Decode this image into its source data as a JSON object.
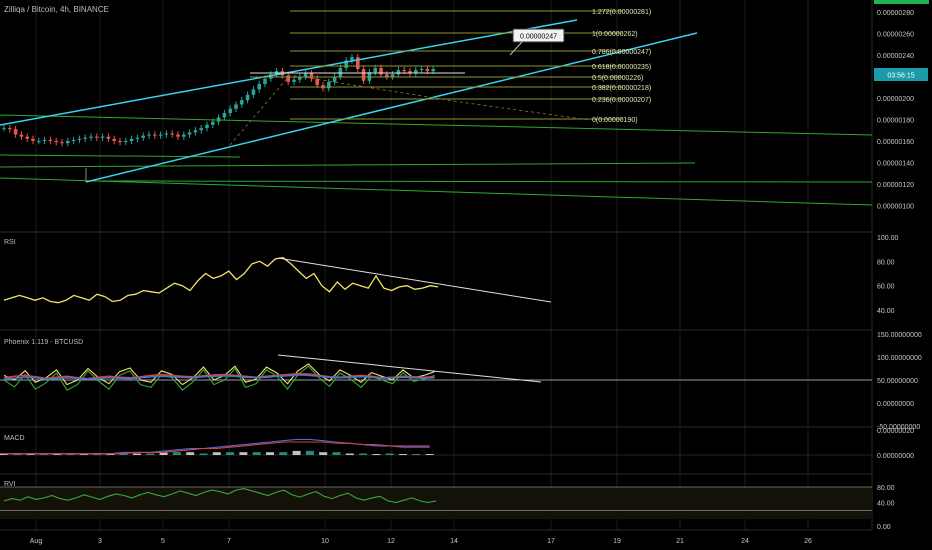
{
  "header": {
    "symbol_title": "Zilliqa / Bitcoin, 4h, BINANCE"
  },
  "colors": {
    "background": "#000000",
    "grid": "#1c1c1c",
    "axis_text": "#c8c8c8",
    "candle_up": "#26a69a",
    "candle_down": "#ef5350",
    "channel": "#36d4f0",
    "fib": "#8a9a2a",
    "fib_text": "#e6e6b4",
    "green_line": "#2ea82e",
    "rsi": "#f2e36b",
    "phoenix_yellow": "#f2e36b",
    "phoenix_green": "#3aa83a",
    "phoenix_red": "#d94040",
    "phoenix_blue": "#3a7ad9",
    "macd_blue": "#4a6ad9",
    "macd_red": "#d94040",
    "rvi": "#3aa83a"
  },
  "price_axis": {
    "ticks": [
      "0.00000280",
      "0.00000260",
      "0.00000240",
      "0.00000220",
      "0.00000200",
      "0.00000180",
      "0.00000160",
      "0.00000140",
      "0.00000120",
      "0.00000100"
    ],
    "countdown": "03:56:15"
  },
  "time_axis": {
    "labels": [
      "Aug",
      "3",
      "5",
      "7",
      "10",
      "12",
      "14",
      "17",
      "19",
      "21",
      "24",
      "26"
    ]
  },
  "fib_levels": [
    {
      "ratio": "1.272",
      "price": "0.00000281"
    },
    {
      "ratio": "1",
      "price": "0.00000262"
    },
    {
      "ratio": "0.786",
      "price": "0.00000247"
    },
    {
      "ratio": "0.618",
      "price": "0.00000235"
    },
    {
      "ratio": "0.5",
      "price": "0.00000226"
    },
    {
      "ratio": "0.382",
      "price": "0.00000218"
    },
    {
      "ratio": "0.236",
      "price": "0.00000207"
    },
    {
      "ratio": "0",
      "price": "0.00000190"
    }
  ],
  "fib_label_format": "({price})",
  "callout": {
    "value": "0.00000247"
  },
  "panels": {
    "rsi": {
      "label": "RSI",
      "ticks": [
        "100.00",
        "80.00",
        "60.00",
        "40.00"
      ]
    },
    "phoenix": {
      "label": "Phoenix 1.119 - BTCUSD",
      "ticks": [
        "150.00000000",
        "100.00000000",
        "50.00000000",
        "0.00000000",
        "-50.00000000"
      ]
    },
    "macd": {
      "label": "MACD",
      "ticks": [
        "0.00000020",
        "0.00000000"
      ]
    },
    "rvi": {
      "label": "RVI",
      "ticks": [
        "80.00",
        "40.00",
        "0.00"
      ]
    }
  },
  "chart_data": {
    "type": "line",
    "title": "Zilliqa / Bitcoin, 4h, BINANCE",
    "note_units": "price in BTC; x = candle index (4h bars)",
    "price_series": [
      1.72,
      1.71,
      1.66,
      1.64,
      1.62,
      1.6,
      1.6,
      1.61,
      1.6,
      1.59,
      1.58,
      1.6,
      1.61,
      1.62,
      1.63,
      1.64,
      1.63,
      1.64,
      1.62,
      1.6,
      1.59,
      1.6,
      1.62,
      1.63,
      1.65,
      1.66,
      1.65,
      1.66,
      1.67,
      1.66,
      1.64,
      1.66,
      1.68,
      1.7,
      1.72,
      1.75,
      1.78,
      1.82,
      1.86,
      1.9,
      1.94,
      1.98,
      2.03,
      2.08,
      2.13,
      2.18,
      2.22,
      2.25,
      2.21,
      2.15,
      2.17,
      2.2,
      2.23,
      2.18,
      2.12,
      2.09,
      2.15,
      2.2,
      2.28,
      2.35,
      2.38,
      2.27,
      2.16,
      2.24,
      2.28,
      2.22,
      2.2,
      2.22,
      2.26,
      2.25,
      2.23,
      2.26,
      2.27,
      2.25,
      2.27
    ],
    "rsi_series": [
      48,
      50,
      52,
      50,
      48,
      50,
      47,
      46,
      48,
      52,
      50,
      48,
      53,
      51,
      47,
      48,
      52,
      53,
      56,
      55,
      54,
      58,
      62,
      60,
      56,
      64,
      70,
      66,
      68,
      72,
      65,
      70,
      78,
      80,
      76,
      82,
      83,
      78,
      72,
      66,
      70,
      60,
      55,
      63,
      57,
      62,
      60,
      58,
      68,
      58,
      56,
      59,
      60,
      57,
      58,
      60,
      59
    ],
    "phoenix_yellow": [
      60,
      50,
      70,
      45,
      55,
      72,
      40,
      50,
      75,
      55,
      42,
      68,
      76,
      50,
      45,
      70,
      62,
      40,
      55,
      78,
      50,
      60,
      80,
      45,
      52,
      78,
      65,
      42,
      70,
      85,
      62,
      48,
      72,
      60,
      45,
      66,
      58,
      50,
      72,
      55,
      60,
      68
    ],
    "phoenix_green": [
      50,
      35,
      62,
      30,
      44,
      65,
      28,
      40,
      70,
      48,
      30,
      60,
      70,
      40,
      34,
      62,
      55,
      28,
      46,
      72,
      40,
      50,
      75,
      34,
      42,
      72,
      58,
      30,
      62,
      80,
      55,
      36,
      65,
      52,
      34,
      58,
      50,
      42,
      66,
      47,
      52,
      60
    ],
    "phoenix_red": [
      55,
      58,
      60,
      57,
      54,
      56,
      58,
      55,
      53,
      56,
      58,
      56,
      55,
      57,
      60,
      62,
      60,
      58,
      57,
      59,
      61,
      62,
      60,
      58,
      56,
      58,
      60,
      62,
      64,
      63,
      60,
      57,
      56,
      58,
      60,
      58,
      55,
      56,
      58,
      57,
      56,
      57
    ],
    "phoenix_blue": [
      52,
      54,
      56,
      55,
      52,
      53,
      55,
      54,
      52,
      53,
      55,
      54,
      53,
      55,
      57,
      58,
      57,
      56,
      55,
      57,
      58,
      59,
      58,
      56,
      55,
      56,
      58,
      59,
      61,
      60,
      58,
      56,
      55,
      56,
      57,
      56,
      54,
      55,
      56,
      55,
      54,
      55
    ],
    "macd_line": [
      0.01,
      0.01,
      0.01,
      0.01,
      0.01,
      0.01,
      0.01,
      0.01,
      0.01,
      0.02,
      0.02,
      0.02,
      0.03,
      0.04,
      0.05,
      0.05,
      0.06,
      0.07,
      0.08,
      0.09,
      0.1,
      0.11,
      0.12,
      0.12,
      0.11,
      0.1,
      0.09,
      0.08,
      0.07,
      0.07,
      0.06,
      0.06,
      0.06
    ],
    "macd_signal": [
      0.01,
      0.01,
      0.01,
      0.01,
      0.01,
      0.01,
      0.01,
      0.01,
      0.01,
      0.01,
      0.02,
      0.02,
      0.02,
      0.03,
      0.04,
      0.05,
      0.05,
      0.06,
      0.07,
      0.08,
      0.09,
      0.1,
      0.1,
      0.1,
      0.1,
      0.09,
      0.09,
      0.08,
      0.08,
      0.07,
      0.07,
      0.07,
      0.07
    ],
    "rvi_series": [
      44,
      50,
      46,
      55,
      48,
      52,
      58,
      50,
      46,
      52,
      60,
      54,
      48,
      56,
      62,
      58,
      52,
      60,
      66,
      60,
      55,
      62,
      70,
      64,
      58,
      66,
      72,
      68,
      62,
      72,
      76,
      70,
      64,
      58,
      66,
      72,
      60,
      54,
      62,
      68,
      56,
      50,
      58,
      64,
      52,
      46,
      52,
      56,
      44,
      40,
      46,
      52,
      44,
      40,
      44
    ]
  }
}
